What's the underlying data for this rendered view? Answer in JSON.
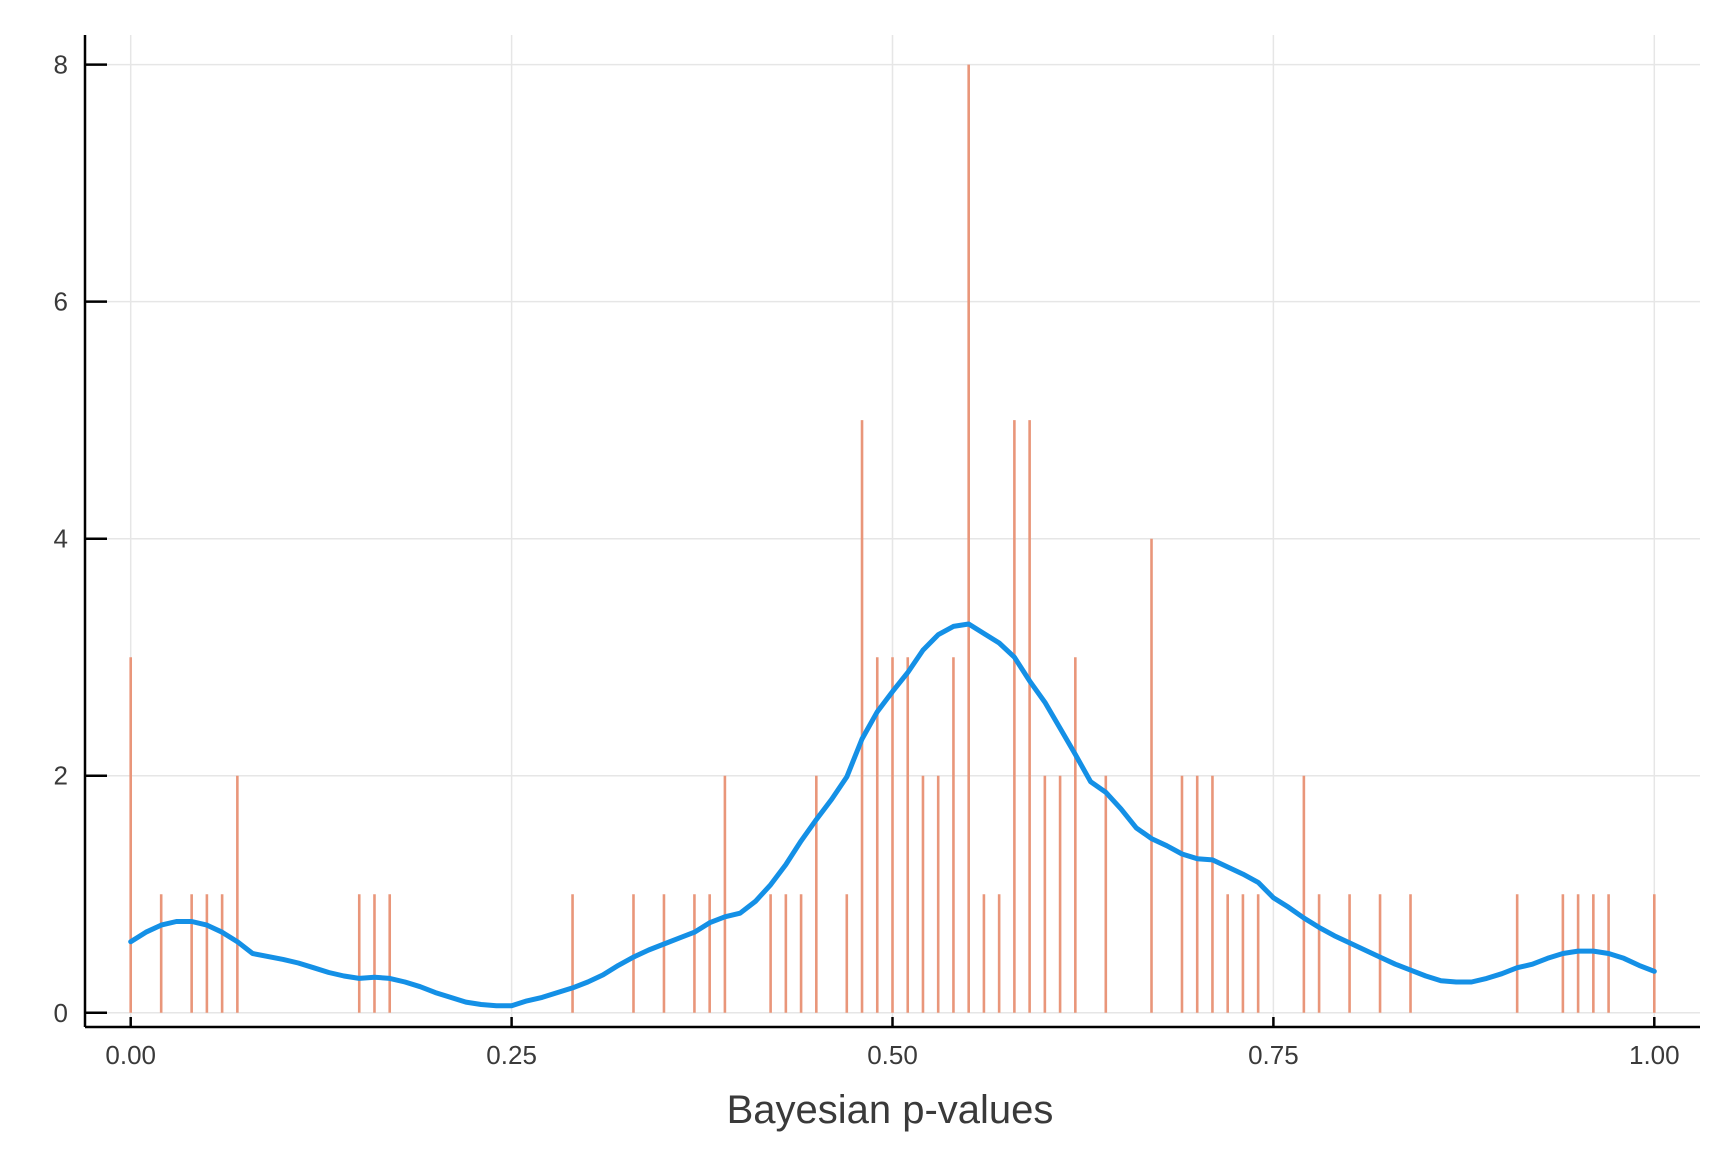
{
  "chart_data": {
    "type": "bar",
    "title": "",
    "xlabel": "Bayesian p-values",
    "ylabel": "",
    "xlim": [
      -0.03,
      1.03
    ],
    "ylim": [
      -0.12,
      8.25
    ],
    "xticks": [
      0.0,
      0.25,
      0.5,
      0.75,
      1.0
    ],
    "xtick_labels": [
      "0.00",
      "0.25",
      "0.50",
      "0.75",
      "1.00"
    ],
    "yticks": [
      0,
      2,
      4,
      6,
      8
    ],
    "ytick_labels": [
      "0",
      "2",
      "4",
      "6",
      "8"
    ],
    "grid": true,
    "legend": "none",
    "series": [
      {
        "type": "sticks",
        "color": "#e9967a",
        "x": [
          0.0,
          0.02,
          0.04,
          0.05,
          0.06,
          0.07,
          0.15,
          0.16,
          0.17,
          0.29,
          0.33,
          0.35,
          0.37,
          0.38,
          0.39,
          0.42,
          0.43,
          0.44,
          0.45,
          0.47,
          0.48,
          0.49,
          0.5,
          0.51,
          0.52,
          0.53,
          0.54,
          0.55,
          0.56,
          0.57,
          0.58,
          0.59,
          0.6,
          0.61,
          0.62,
          0.64,
          0.67,
          0.69,
          0.7,
          0.71,
          0.72,
          0.73,
          0.74,
          0.77,
          0.78,
          0.8,
          0.82,
          0.84,
          0.91,
          0.94,
          0.95,
          0.96,
          0.97,
          1.0
        ],
        "values": [
          3,
          1,
          1,
          1,
          1,
          2,
          1,
          1,
          1,
          1,
          1,
          1,
          1,
          1,
          2,
          1,
          1,
          1,
          2,
          1,
          5,
          3,
          3,
          3,
          2,
          2,
          3,
          8,
          1,
          1,
          5,
          5,
          2,
          2,
          3,
          2,
          4,
          2,
          2,
          2,
          1,
          1,
          1,
          2,
          1,
          1,
          1,
          1,
          1,
          1,
          1,
          1,
          1,
          1
        ]
      },
      {
        "type": "line",
        "color": "#1490e6",
        "x": [
          0.0,
          0.01,
          0.02,
          0.03,
          0.04,
          0.05,
          0.06,
          0.07,
          0.08,
          0.1,
          0.11,
          0.12,
          0.13,
          0.14,
          0.15,
          0.16,
          0.17,
          0.18,
          0.19,
          0.2,
          0.21,
          0.22,
          0.23,
          0.24,
          0.25,
          0.26,
          0.27,
          0.28,
          0.29,
          0.3,
          0.31,
          0.32,
          0.33,
          0.34,
          0.35,
          0.36,
          0.37,
          0.38,
          0.39,
          0.4,
          0.41,
          0.42,
          0.43,
          0.44,
          0.45,
          0.46,
          0.47,
          0.48,
          0.49,
          0.5,
          0.51,
          0.52,
          0.53,
          0.54,
          0.55,
          0.56,
          0.57,
          0.58,
          0.59,
          0.6,
          0.61,
          0.62,
          0.63,
          0.64,
          0.65,
          0.66,
          0.67,
          0.68,
          0.69,
          0.7,
          0.71,
          0.72,
          0.73,
          0.74,
          0.75,
          0.76,
          0.77,
          0.78,
          0.79,
          0.8,
          0.81,
          0.82,
          0.83,
          0.84,
          0.85,
          0.86,
          0.87,
          0.88,
          0.89,
          0.9,
          0.91,
          0.92,
          0.93,
          0.94,
          0.95,
          0.96,
          0.97,
          0.98,
          0.99,
          1.0
        ],
        "values": [
          0.6,
          0.68,
          0.74,
          0.77,
          0.77,
          0.74,
          0.68,
          0.6,
          0.5,
          0.45,
          0.42,
          0.38,
          0.34,
          0.31,
          0.29,
          0.3,
          0.29,
          0.26,
          0.22,
          0.17,
          0.13,
          0.09,
          0.07,
          0.06,
          0.06,
          0.1,
          0.13,
          0.17,
          0.21,
          0.26,
          0.32,
          0.4,
          0.47,
          0.53,
          0.58,
          0.63,
          0.68,
          0.76,
          0.81,
          0.84,
          0.94,
          1.08,
          1.25,
          1.45,
          1.63,
          1.8,
          1.99,
          2.31,
          2.54,
          2.71,
          2.87,
          3.06,
          3.19,
          3.26,
          3.28,
          3.2,
          3.12,
          3.0,
          2.8,
          2.62,
          2.4,
          2.18,
          1.95,
          1.86,
          1.72,
          1.56,
          1.47,
          1.41,
          1.34,
          1.3,
          1.29,
          1.23,
          1.17,
          1.1,
          0.97,
          0.89,
          0.8,
          0.72,
          0.65,
          0.59,
          0.53,
          0.47,
          0.41,
          0.36,
          0.31,
          0.27,
          0.26,
          0.26,
          0.29,
          0.33,
          0.38,
          0.41,
          0.46,
          0.5,
          0.52,
          0.52,
          0.5,
          0.46,
          0.4,
          0.35
        ]
      }
    ]
  }
}
